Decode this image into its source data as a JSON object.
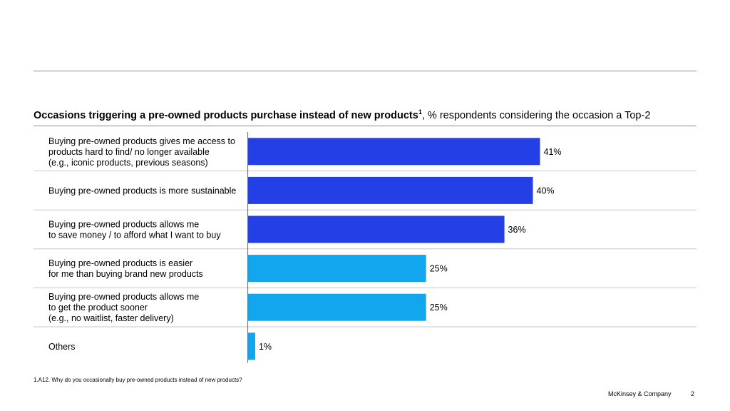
{
  "title": {
    "bold_text": "Occasions triggering a pre-owned products purchase instead of new products",
    "superscript": "1",
    "suffix": ", % respondents considering the occasion a Top-2"
  },
  "chart_data": {
    "type": "bar",
    "orientation": "horizontal",
    "categories": [
      [
        "Buying pre-owned products gives me access to",
        "products hard to find/ no longer available",
        "(e.g., iconic products, previous seasons)"
      ],
      [
        "Buying pre-owned products is more sustainable"
      ],
      [
        "Buying pre-owned products allows me",
        "to save money / to afford what I want to buy"
      ],
      [
        "Buying pre-owned products is easier",
        "for me than buying brand new products"
      ],
      [
        "Buying pre-owned products allows me",
        "to get the product sooner",
        "(e.g., no waitlist, faster delivery)"
      ],
      [
        "Others"
      ]
    ],
    "values": [
      41,
      40,
      36,
      25,
      25,
      1
    ],
    "value_labels": [
      "41%",
      "40%",
      "36%",
      "25%",
      "25%",
      "1%"
    ],
    "bar_colors": [
      "#2240e5",
      "#2240e5",
      "#2240e5",
      "#12a6ef",
      "#12a6ef",
      "#12a6ef"
    ],
    "xlim": [
      0,
      41
    ],
    "grid": false,
    "legend": "none"
  },
  "footnote": "1.A12. Why do you occasionally buy pre-owned products instead of new products?",
  "footer": {
    "brand": "McKinsey & Company",
    "page": "2"
  }
}
